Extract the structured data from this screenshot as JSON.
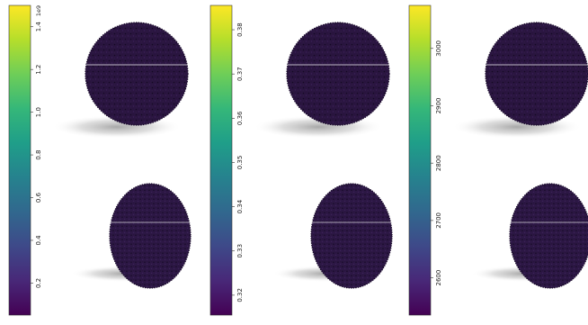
{
  "colormap": [
    "#440154",
    "#482878",
    "#3e4989",
    "#31688e",
    "#26828e",
    "#1f9e89",
    "#35b779",
    "#6ece58",
    "#b5de2b",
    "#fde725"
  ],
  "sphere_color": "#2a1540",
  "panels": [
    {
      "exponent": "1e9",
      "ticks": [
        {
          "label": "0.2",
          "value": 0.2
        },
        {
          "label": "0.4",
          "value": 0.4
        },
        {
          "label": "0.6",
          "value": 0.6
        },
        {
          "label": "0.8",
          "value": 0.8
        },
        {
          "label": "1.0",
          "value": 1.0
        },
        {
          "label": "1.2",
          "value": 1.2
        },
        {
          "label": "1.4",
          "value": 1.4
        }
      ],
      "range": [
        0.05,
        1.5
      ]
    },
    {
      "exponent": "",
      "ticks": [
        {
          "label": "0.32",
          "value": 0.32
        },
        {
          "label": "0.33",
          "value": 0.33
        },
        {
          "label": "0.34",
          "value": 0.34
        },
        {
          "label": "0.35",
          "value": 0.35
        },
        {
          "label": "0.36",
          "value": 0.36
        },
        {
          "label": "0.37",
          "value": 0.37
        },
        {
          "label": "0.38",
          "value": 0.38
        }
      ],
      "range": [
        0.3155,
        0.3855
      ]
    },
    {
      "exponent": "",
      "ticks": [
        {
          "label": "2600",
          "value": 2600
        },
        {
          "label": "2700",
          "value": 2700
        },
        {
          "label": "2800",
          "value": 2800
        },
        {
          "label": "2900",
          "value": 2900
        },
        {
          "label": "3000",
          "value": 3000
        }
      ],
      "range": [
        2535,
        3075
      ]
    }
  ]
}
